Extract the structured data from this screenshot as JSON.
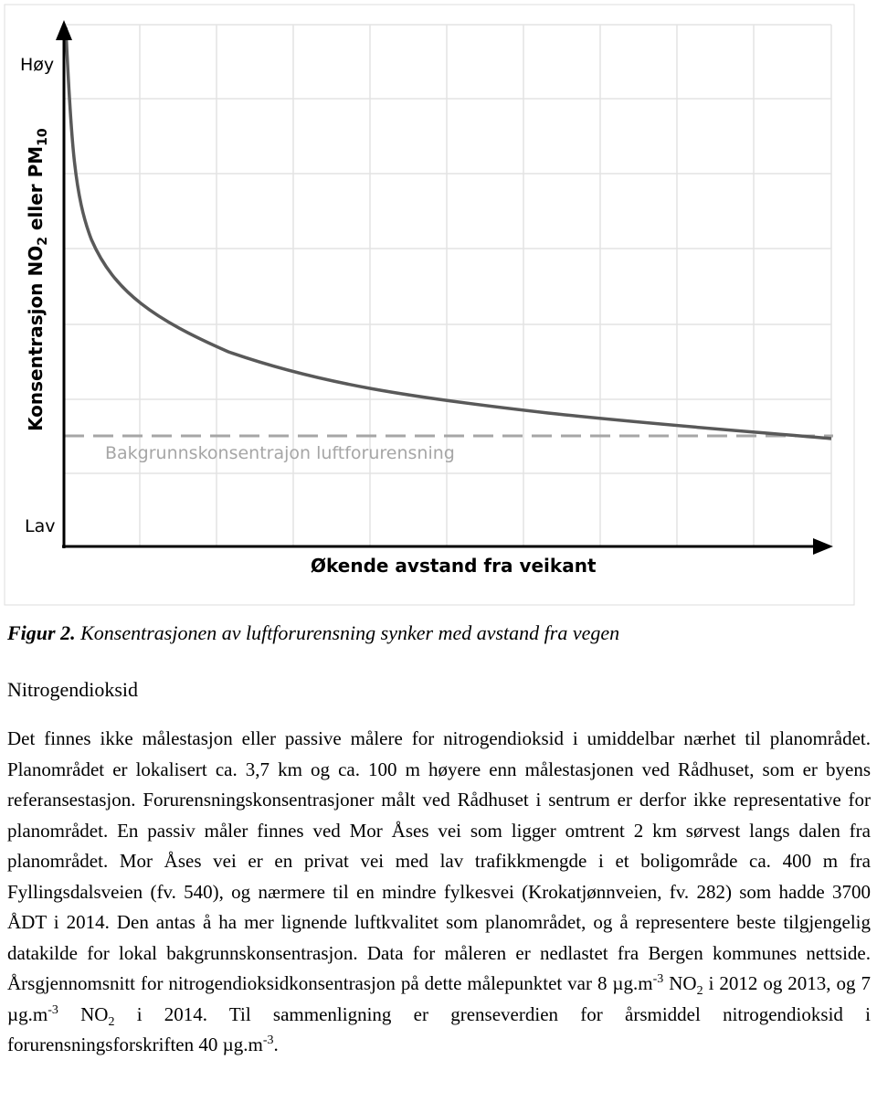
{
  "figure": {
    "y_high": "Høy",
    "y_low": "Lav",
    "y_label": [
      "Konsentrasjon NO",
      "2",
      " eller PM",
      "10"
    ],
    "x_label": "Økende avstand fra veikant",
    "baseline_label": "Bakgrunnskonsentrajon luftforurensning"
  },
  "caption": {
    "number": "Figur 2.",
    "text": " Konsentrasjonen av luftforurensning synker med avstand fra vegen"
  },
  "heading": "Nitrogendioksid",
  "paragraph": [
    {
      "text": "Det finnes ikke målestasjon eller passive målere for nitrogendioksid i umiddelbar nærhet til planområdet. Planområdet er lokalisert ca. 3,7 km og ca. 100 m høyere enn målestasjonen ved Rådhuset, som er byens referansestasjon. Forurensningskonsentrasjoner målt ved Rådhuset i sentrum er derfor ikke representative for planområdet. En passiv måler finnes ved Mor Åses vei som ligger omtrent 2 km sørvest langs dalen fra planområdet. Mor Åses vei er en privat vei med lav trafikkmengde i et boligområde ca. 400 m fra Fyllingsdalsveien (fv. 540), og nærmere til en mindre fylkesvei (Krokatjønnveien, fv. 282) som hadde 3700 ÅDT i 2014. Den antas å ha mer lignende luftkvalitet som planområdet, og å representere beste tilgjengelig datakilde for lokal bakgrunnskonsentrasjon. Data for måleren er nedlastet fra Bergen kommunes nettside. Årsgjennomsnitt for nitrogendioksidkonsentrasjon på dette målepunktet var 8 µg.m"
    },
    {
      "sup": "-3"
    },
    {
      "text": " NO"
    },
    {
      "sub": "2"
    },
    {
      "text": " i 2012 og 2013, og 7 µg.m"
    },
    {
      "sup": "-3"
    },
    {
      "text": " NO"
    },
    {
      "sub": "2"
    },
    {
      "text": " i 2014. Til sammenligning er grenseverdien for årsmiddel nitrogendioksid i forurensningsforskriften 40 µg.m"
    },
    {
      "sup": "-3"
    },
    {
      "text": "."
    }
  ]
}
